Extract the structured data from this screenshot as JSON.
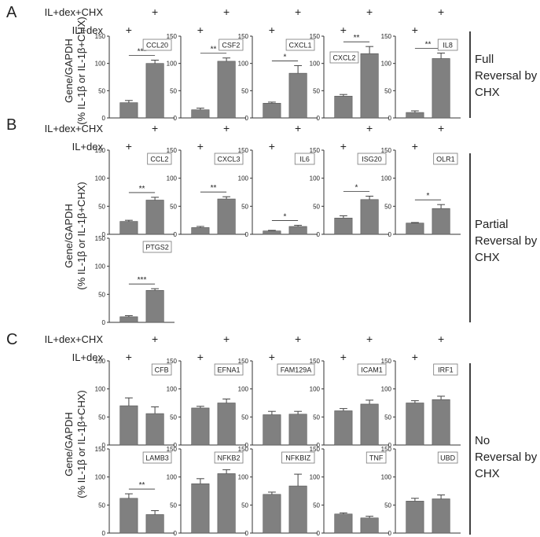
{
  "chart_data": [
    {
      "type": "bar",
      "panel": "A",
      "row_labels": [
        "IL+dex+CHX",
        "IL+dex"
      ],
      "ylabel": "Gene/GAPDH (% IL-1β or IL-1β+CHX)",
      "annotation": "Full Reversal by CHX",
      "ylim": [
        0,
        150
      ],
      "yticks": [
        0,
        50,
        100,
        150
      ],
      "categories": [
        "IL+dex",
        "IL+dex+CHX"
      ],
      "charts": [
        {
          "gene": "CCL20",
          "values": [
            28,
            100
          ],
          "errors": [
            4,
            6
          ],
          "sig": "***"
        },
        {
          "gene": "CSF2",
          "values": [
            15,
            104
          ],
          "errors": [
            3,
            6
          ],
          "sig": "**"
        },
        {
          "gene": "CXCL1",
          "values": [
            27,
            82
          ],
          "errors": [
            2,
            14
          ],
          "sig": "*"
        },
        {
          "gene": "CXCL2",
          "values": [
            40,
            118
          ],
          "errors": [
            3,
            13
          ],
          "sig": "**"
        },
        {
          "gene": "IL8",
          "values": [
            10,
            109
          ],
          "errors": [
            3,
            10
          ],
          "sig": "**"
        }
      ]
    },
    {
      "type": "bar",
      "panel": "B",
      "row_labels": [
        "IL+dex+CHX",
        "IL+dex"
      ],
      "ylabel": "Gene/GAPDH (% IL-1β or IL-1β+CHX)",
      "annotation": "Partial Reversal by CHX",
      "ylim": [
        0,
        150
      ],
      "yticks": [
        0,
        50,
        100,
        150
      ],
      "categories": [
        "IL+dex",
        "IL+dex+CHX"
      ],
      "charts": [
        {
          "gene": "CCL2",
          "values": [
            23,
            61
          ],
          "errors": [
            2,
            5
          ],
          "sig": "**"
        },
        {
          "gene": "CXCL3",
          "values": [
            12,
            63
          ],
          "errors": [
            2,
            4
          ],
          "sig": "**"
        },
        {
          "gene": "IL6",
          "values": [
            6,
            14
          ],
          "errors": [
            1,
            2
          ],
          "sig": "*"
        },
        {
          "gene": "ISG20",
          "values": [
            29,
            62
          ],
          "errors": [
            4,
            6
          ],
          "sig": "*"
        },
        {
          "gene": "OLR1",
          "values": [
            20,
            46
          ],
          "errors": [
            1,
            7
          ],
          "sig": "*"
        },
        {
          "gene": "PTGS2",
          "values": [
            10,
            57
          ],
          "errors": [
            2,
            3
          ],
          "sig": "***"
        }
      ]
    },
    {
      "type": "bar",
      "panel": "C",
      "row_labels": [
        "IL+dex+CHX",
        "IL+dex"
      ],
      "ylabel": "Gene/GAPDH (% IL-1β or IL-1β+CHX)",
      "annotation": "No Reversal by CHX",
      "ylim": [
        0,
        150
      ],
      "yticks": [
        0,
        50,
        100,
        150
      ],
      "categories": [
        "IL+dex",
        "IL+dex+CHX"
      ],
      "charts": [
        {
          "gene": "CFB",
          "values": [
            70,
            56
          ],
          "errors": [
            14,
            12
          ],
          "sig": ""
        },
        {
          "gene": "EFNA1",
          "values": [
            66,
            75
          ],
          "errors": [
            3,
            7
          ],
          "sig": ""
        },
        {
          "gene": "FAM129A",
          "values": [
            54,
            55
          ],
          "errors": [
            6,
            5
          ],
          "sig": ""
        },
        {
          "gene": "ICAM1",
          "values": [
            61,
            73
          ],
          "errors": [
            4,
            7
          ],
          "sig": ""
        },
        {
          "gene": "IRF1",
          "values": [
            75,
            81
          ],
          "errors": [
            4,
            6
          ],
          "sig": ""
        },
        {
          "gene": "LAMB3",
          "values": [
            62,
            33
          ],
          "errors": [
            8,
            7
          ],
          "sig": "**"
        },
        {
          "gene": "NFKB2",
          "values": [
            88,
            106
          ],
          "errors": [
            9,
            7
          ],
          "sig": ""
        },
        {
          "gene": "NFKBIZ",
          "values": [
            69,
            84
          ],
          "errors": [
            4,
            21
          ],
          "sig": ""
        },
        {
          "gene": "TNF",
          "values": [
            34,
            27
          ],
          "errors": [
            2,
            3
          ],
          "sig": ""
        },
        {
          "gene": "UBD",
          "values": [
            57,
            61
          ],
          "errors": [
            5,
            7
          ],
          "sig": ""
        }
      ]
    }
  ],
  "colors": {
    "bar": "#808080",
    "axis": "#333333",
    "text": "#222222"
  }
}
